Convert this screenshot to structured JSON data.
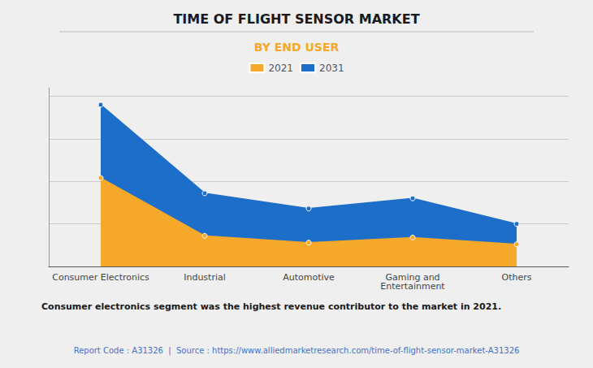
{
  "chart_data": {
    "type": "area",
    "title": "TIME OF FLIGHT SENSOR MARKET",
    "subtitle": "BY END USER",
    "annotation": "Consumer electronics segment was the highest revenue contributor to the market in 2021.",
    "footer": "Report Code : A31326  |  Source : https://www.alliedmarketresearch.com/time-of-flight-sensor-market-A31326",
    "categories": [
      "Consumer Electronics",
      "Industrial",
      "Automotive",
      "Gaming and\nEntertainment",
      "Others"
    ],
    "series": [
      {
        "name": "2021",
        "color": "#F5A82A",
        "values": [
          0.52,
          0.18,
          0.14,
          0.17,
          0.13
        ]
      },
      {
        "name": "2031",
        "color": "#1C6EC9",
        "values": [
          0.95,
          0.43,
          0.34,
          0.4,
          0.25
        ]
      }
    ],
    "ylim": [
      0,
      1.05
    ],
    "yticks": [
      0,
      0.25,
      0.5,
      0.75,
      1.0
    ],
    "grid": true,
    "legend": "top",
    "tick_labels": "x",
    "marker": "circle"
  }
}
